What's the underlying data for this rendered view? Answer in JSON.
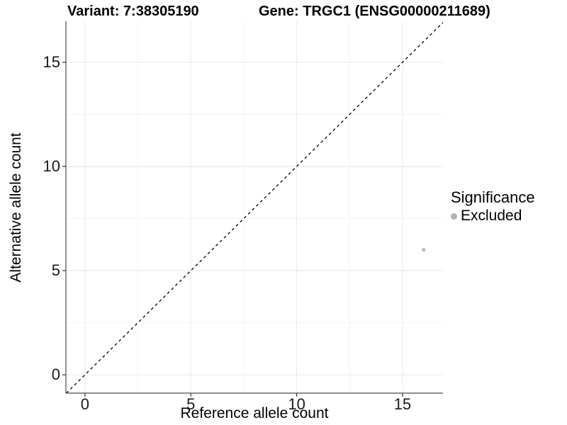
{
  "chart_data": {
    "type": "scatter",
    "title_left": "Variant: 7:38305190",
    "title_right": "Gene: TRGC1 (ENSG00000211689)",
    "xlabel": "Reference allele count",
    "ylabel": "Alternative allele count",
    "xlim": [
      -0.9,
      16.91
    ],
    "ylim": [
      -0.88,
      16.97
    ],
    "x_ticks": [
      0,
      5,
      10,
      15
    ],
    "y_ticks": [
      0,
      5,
      10,
      15
    ],
    "x_minor_ticks": [
      2.5,
      7.5,
      12.5
    ],
    "y_minor_ticks": [
      2.5,
      7.5,
      12.5
    ],
    "grid": true,
    "legend_position": "right",
    "reference_line": {
      "type": "identity",
      "slope": 1,
      "intercept": 0,
      "style": "dashed",
      "color": "#000000"
    },
    "series": [
      {
        "name": "Excluded",
        "color": "#bdbdbd",
        "points": [
          {
            "x": 16,
            "y": 6
          }
        ]
      }
    ],
    "legend": {
      "title": "Significance",
      "items": [
        {
          "label": "Excluded",
          "color": "#b3b3b3"
        }
      ]
    }
  },
  "style_colors": {
    "axis_line": "#4d4d4d",
    "tick_mark": "#333333",
    "grid_major": "#e9e9e9",
    "grid_minor": "#f3f3f3",
    "background": "#ffffff"
  }
}
